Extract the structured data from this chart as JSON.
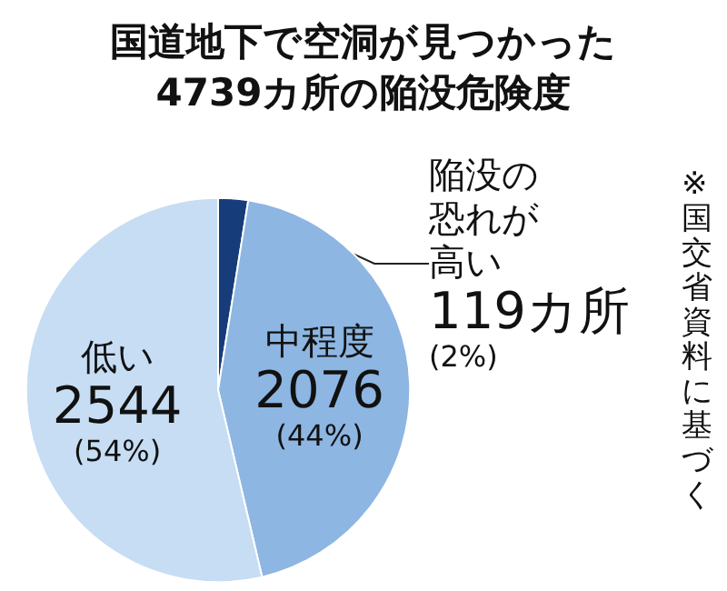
{
  "chart_data": {
    "type": "pie",
    "title": "国道地下で空洞が見つかった\n4739カ所の陥没危険度",
    "categories": [
      "陥没の恐れが高い",
      "中程度",
      "低い"
    ],
    "values": [
      119,
      2076,
      2544
    ],
    "colors": [
      "#173c7a",
      "#8db6e2",
      "#c6ddf4"
    ],
    "value_labels": [
      "119カ所\n(2%)",
      "2076\n(44%)",
      "2544\n(54%)"
    ],
    "annotations": [
      "※国交省資料に基づく"
    ],
    "legend": false
  }
}
